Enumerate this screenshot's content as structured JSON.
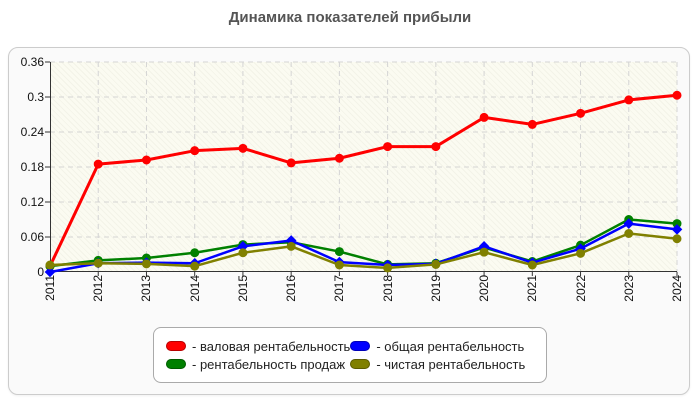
{
  "title": "Динамика показателей прибыли",
  "chart_data": {
    "type": "line",
    "x": [
      2011,
      2012,
      2013,
      2014,
      2015,
      2016,
      2017,
      2018,
      2019,
      2020,
      2021,
      2022,
      2023,
      2024
    ],
    "series": [
      {
        "name": "валовая рентабельность",
        "legend_label": "- валовая рентабельность",
        "color": "#ff0000",
        "marker": "circle",
        "values": [
          0.01,
          0.185,
          0.192,
          0.208,
          0.212,
          0.187,
          0.195,
          0.215,
          0.215,
          0.265,
          0.253,
          0.272,
          0.295,
          0.303
        ]
      },
      {
        "name": "общая рентабельность",
        "legend_label": "- общая рентабельность",
        "color": "#0000ff",
        "marker": "diamond",
        "values": [
          0.0,
          0.015,
          0.016,
          0.015,
          0.044,
          0.054,
          0.017,
          0.012,
          0.014,
          0.044,
          0.016,
          0.04,
          0.083,
          0.073
        ]
      },
      {
        "name": "рентабельность продаж",
        "legend_label": "- рентабельность продаж",
        "color": "#008000",
        "marker": "circle",
        "values": [
          0.01,
          0.02,
          0.024,
          0.033,
          0.047,
          0.051,
          0.035,
          0.013,
          0.015,
          0.042,
          0.018,
          0.046,
          0.09,
          0.083
        ]
      },
      {
        "name": "чистая рентабельность",
        "legend_label": "- чистая рентабельность",
        "color": "#808000",
        "marker": "circle",
        "values": [
          0.012,
          0.015,
          0.014,
          0.01,
          0.033,
          0.044,
          0.012,
          0.007,
          0.013,
          0.034,
          0.012,
          0.032,
          0.066,
          0.057
        ]
      }
    ],
    "legend_display_order": [
      0,
      1,
      2,
      3
    ],
    "draw_order": [
      0,
      2,
      1,
      3
    ],
    "ylim": [
      0,
      0.36
    ],
    "yticks": [
      0,
      0.06,
      0.12,
      0.18,
      0.24,
      0.3,
      0.36
    ],
    "ytick_labels": [
      "0",
      "0.06",
      "0.12",
      "0.18",
      "0.24",
      "0.3",
      "0.36"
    ],
    "grid": true,
    "grid_color": "#d4d4d4",
    "axis_color": "#333333",
    "legend_position": "bottom"
  }
}
